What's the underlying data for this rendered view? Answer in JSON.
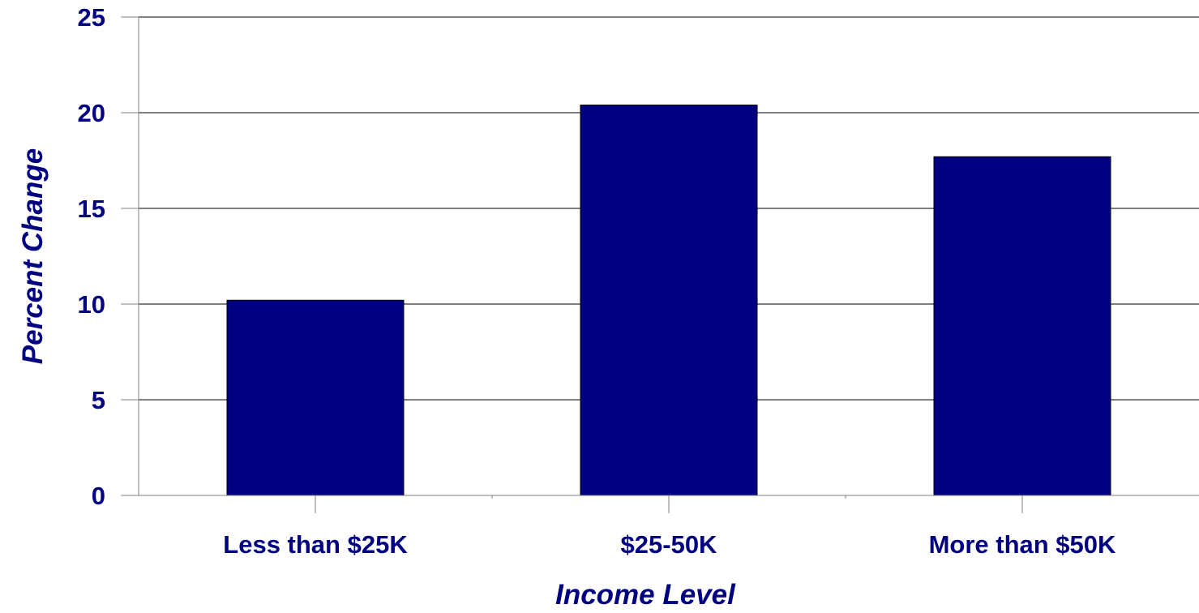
{
  "chart_data": {
    "type": "bar",
    "title": "",
    "xlabel": "Income Level",
    "ylabel": "Percent Change",
    "categories": [
      "Less than $25K",
      "$25-50K",
      "More than $50K"
    ],
    "values": [
      10.2,
      20.4,
      17.7
    ],
    "ylim": [
      0,
      25
    ],
    "yticks": [
      "0",
      "5",
      "10",
      "15",
      "20",
      "25"
    ],
    "grid": true,
    "legend": "none",
    "colors": {
      "bar": "#000080",
      "text": "#000080",
      "axis": "#808080",
      "grid": "#000000"
    }
  }
}
